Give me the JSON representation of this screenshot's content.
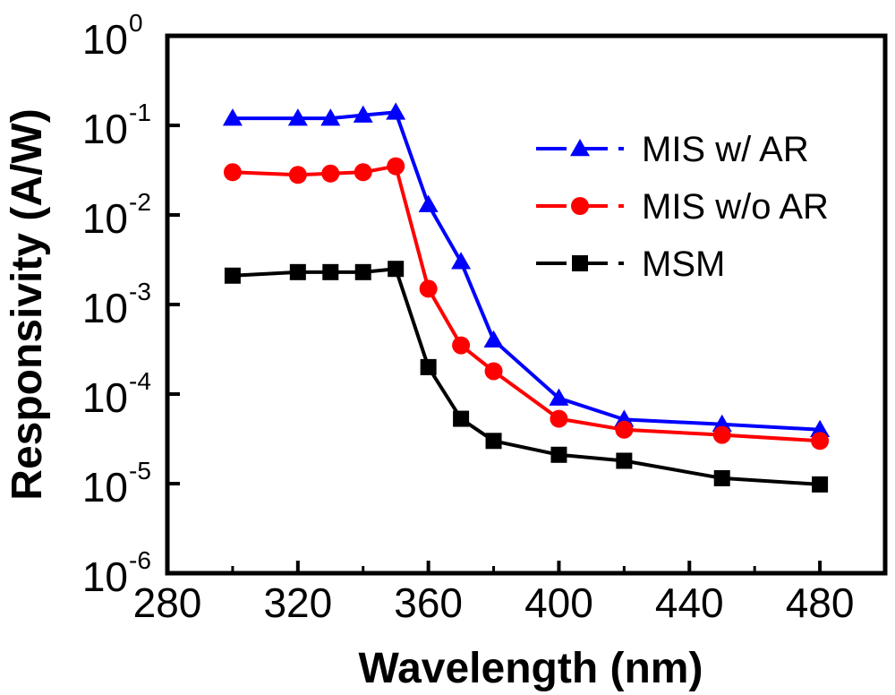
{
  "chart_data": {
    "type": "line",
    "title": "",
    "xlabel": "Wavelength (nm)",
    "ylabel": "Responsivity (A/W)",
    "xlim": [
      280,
      500
    ],
    "x_ticks": [
      280,
      320,
      360,
      400,
      440,
      480
    ],
    "y_scale": "log",
    "ylim_exp": [
      -6,
      0
    ],
    "y_ticks": [
      {
        "base": "10",
        "exp": "0"
      },
      {
        "base": "10",
        "exp": "-1"
      },
      {
        "base": "10",
        "exp": "-2"
      },
      {
        "base": "10",
        "exp": "-3"
      },
      {
        "base": "10",
        "exp": "-4"
      },
      {
        "base": "10",
        "exp": "-5"
      },
      {
        "base": "10",
        "exp": "-6"
      }
    ],
    "grid": false,
    "legend_position": "top-right",
    "series": [
      {
        "name": "MIS w/ AR",
        "color": "#0000ff",
        "marker": "triangle",
        "x": [
          300,
          320,
          330,
          340,
          350,
          360,
          370,
          380,
          400,
          420,
          450,
          480
        ],
        "values": [
          0.12,
          0.12,
          0.12,
          0.13,
          0.14,
          0.013,
          0.003,
          0.0004,
          9e-05,
          5.2e-05,
          4.6e-05,
          4e-05
        ]
      },
      {
        "name": "MIS w/o AR",
        "color": "#ff0000",
        "marker": "circle",
        "x": [
          300,
          320,
          330,
          340,
          350,
          360,
          370,
          380,
          400,
          420,
          450,
          480
        ],
        "values": [
          0.03,
          0.028,
          0.029,
          0.03,
          0.035,
          0.0015,
          0.00035,
          0.00018,
          5.3e-05,
          4e-05,
          3.5e-05,
          3e-05
        ]
      },
      {
        "name": "MSM",
        "color": "#000000",
        "marker": "square",
        "x": [
          300,
          320,
          330,
          340,
          350,
          360,
          370,
          380,
          400,
          420,
          450,
          480
        ],
        "values": [
          0.0021,
          0.0023,
          0.0023,
          0.0023,
          0.0025,
          0.0002,
          5.3e-05,
          3e-05,
          2.1e-05,
          1.8e-05,
          1.15e-05,
          9.8e-06
        ]
      }
    ]
  }
}
